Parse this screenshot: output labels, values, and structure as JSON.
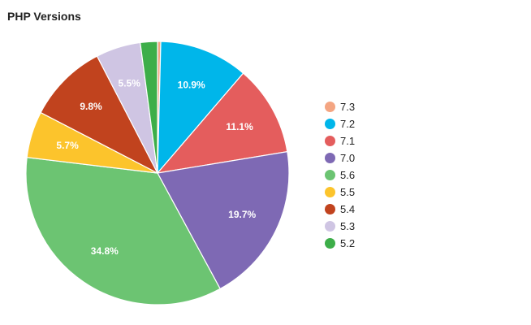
{
  "chart_data": {
    "type": "pie",
    "title": "PHP Versions",
    "legend_position": "right",
    "labels": [
      "7.3",
      "7.2",
      "7.1",
      "7.0",
      "5.6",
      "5.5",
      "5.4",
      "5.3",
      "5.2"
    ],
    "values": [
      0.4,
      10.9,
      11.1,
      19.7,
      34.8,
      5.7,
      9.8,
      5.5,
      2.1
    ],
    "data_labels": [
      "",
      "10.9%",
      "11.1%",
      "19.7%",
      "34.8%",
      "5.7%",
      "9.8%",
      "5.5%",
      ""
    ],
    "colors": [
      "#f4a582",
      "#00b6ea",
      "#e45d5d",
      "#7e69b4",
      "#6cc472",
      "#fcc42c",
      "#c1431e",
      "#cfc5e3",
      "#3dae49"
    ],
    "start_angle_deg": 0,
    "direction": "clockwise"
  }
}
